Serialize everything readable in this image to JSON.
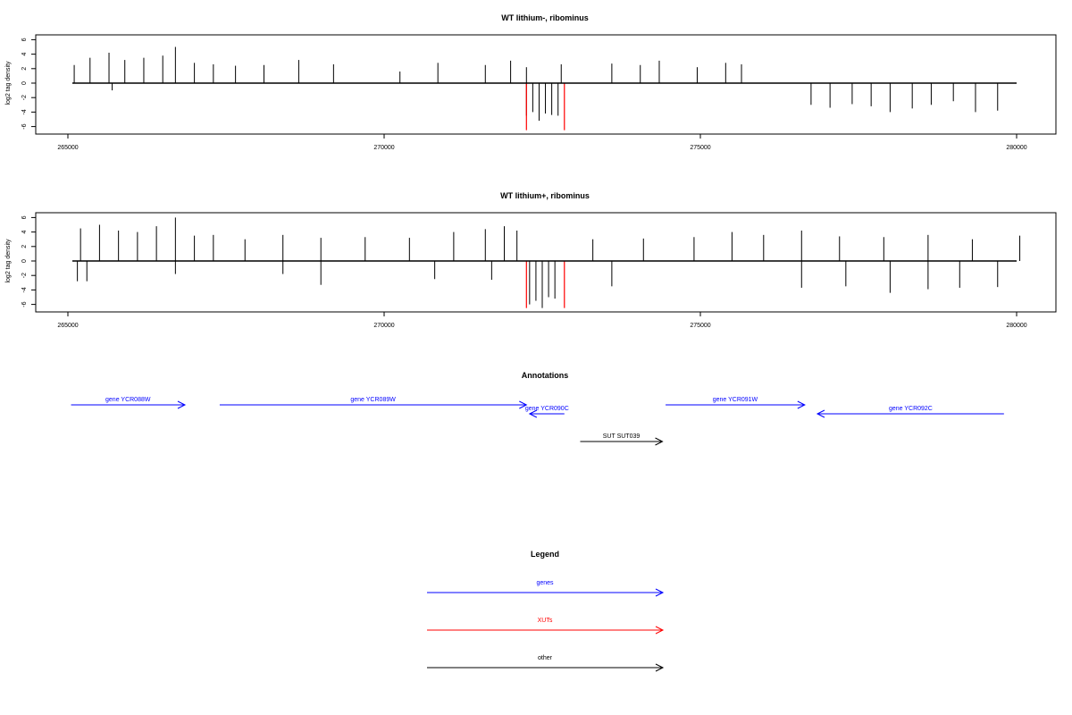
{
  "colors": {
    "gene": "#0000ff",
    "xut": "#ff0000",
    "other": "#000000",
    "axis": "#000000",
    "signal": "#000000"
  },
  "chart_data": [
    {
      "type": "bar",
      "title": "WT lithium-, ribominus",
      "ylabel": "log2 tag density",
      "xlim": [
        265000,
        280000
      ],
      "ylim": [
        -7,
        7
      ],
      "xticks": [
        "265000",
        "270000",
        "275000",
        "280000"
      ],
      "yticks": [
        "-6",
        "-4",
        "-2",
        "0",
        "2",
        "4",
        "6"
      ],
      "series": [
        {
          "strand": "plus",
          "x": [
            265100,
            265350,
            265650,
            265900,
            266200,
            266500,
            266700,
            267000,
            267300,
            267650,
            268100,
            268650,
            269200,
            270250,
            270850,
            271600,
            272000,
            272250,
            272800,
            273600,
            274050,
            274350,
            274950,
            275400,
            275650
          ],
          "values": [
            2.5,
            3.5,
            4.2,
            3.2,
            3.5,
            3.8,
            5.0,
            2.8,
            2.6,
            2.4,
            2.5,
            3.2,
            2.6,
            1.6,
            2.8,
            2.5,
            3.1,
            2.2,
            2.6,
            2.7,
            2.5,
            3.1,
            2.2,
            2.8,
            2.6
          ]
        },
        {
          "strand": "minus",
          "x": [
            265700,
            272250,
            272350,
            272450,
            272550,
            272650,
            272750,
            276750,
            277050,
            277400,
            277700,
            278000,
            278350,
            278650,
            279000,
            279350,
            279700
          ],
          "values": [
            -1.0,
            -4.5,
            -4.0,
            -5.2,
            -4.2,
            -4.4,
            -4.5,
            -3.0,
            -3.4,
            -2.9,
            -3.2,
            -4.0,
            -3.5,
            -3.0,
            -2.5,
            -4.0,
            -3.8
          ]
        },
        {
          "strand": "xut",
          "x": [
            272250,
            272850
          ],
          "values": [
            -6.5,
            -6.5
          ]
        }
      ]
    },
    {
      "type": "bar",
      "title": "WT lithium+, ribominus",
      "ylabel": "log2 tag density",
      "xlim": [
        265000,
        280000
      ],
      "ylim": [
        -7,
        7
      ],
      "xticks": [
        "265000",
        "270000",
        "275000",
        "280000"
      ],
      "yticks": [
        "-6",
        "-4",
        "-2",
        "0",
        "2",
        "4",
        "6"
      ],
      "series": [
        {
          "strand": "plus",
          "x": [
            265200,
            265500,
            265800,
            266100,
            266400,
            266700,
            267000,
            267300,
            267800,
            268400,
            269000,
            269700,
            270400,
            271100,
            271600,
            271900,
            272100,
            273300,
            274100,
            274900,
            275500,
            276000,
            276600,
            277200,
            277900,
            278600,
            279300,
            280050
          ],
          "values": [
            4.5,
            5.0,
            4.2,
            4.0,
            4.8,
            6.0,
            3.5,
            3.6,
            3.0,
            3.6,
            3.2,
            3.3,
            3.2,
            4.0,
            4.4,
            4.8,
            4.2,
            3.0,
            3.1,
            3.3,
            4.0,
            3.6,
            4.2,
            3.4,
            3.3,
            3.6,
            3.0,
            3.5
          ]
        },
        {
          "strand": "minus",
          "x": [
            265150,
            265300,
            266700,
            268400,
            269000,
            270800,
            271700,
            272300,
            272400,
            272500,
            272600,
            272700,
            273600,
            276600,
            277300,
            278000,
            278600,
            279100,
            279700
          ],
          "values": [
            -2.8,
            -2.8,
            -1.8,
            -1.8,
            -3.3,
            -2.5,
            -2.6,
            -6.0,
            -5.5,
            -6.5,
            -5.0,
            -5.2,
            -3.5,
            -3.7,
            -3.5,
            -4.4,
            -3.9,
            -3.7,
            -3.6
          ]
        },
        {
          "strand": "xut",
          "x": [
            272250,
            272850
          ],
          "values": [
            -6.5,
            -6.5
          ]
        }
      ]
    }
  ],
  "annotations": {
    "title": "Annotations",
    "features": [
      {
        "label": "gene YCR088W",
        "start": 265050,
        "end": 266850,
        "strand": "+",
        "kind": "gene",
        "row": 0
      },
      {
        "label": "gene YCR089W",
        "start": 267400,
        "end": 272250,
        "strand": "+",
        "kind": "gene",
        "row": 0
      },
      {
        "label": "gene YCR090C",
        "start": 272300,
        "end": 272850,
        "strand": "-",
        "kind": "gene",
        "row": 1
      },
      {
        "label": "gene YCR091W",
        "start": 274450,
        "end": 276650,
        "strand": "+",
        "kind": "gene",
        "row": 0
      },
      {
        "label": "gene YCR092C",
        "start": 276850,
        "end": 279800,
        "strand": "-",
        "kind": "gene",
        "row": 1
      },
      {
        "label": "SUT SUT039",
        "start": 273100,
        "end": 274400,
        "strand": "+",
        "kind": "other",
        "row": 2
      }
    ]
  },
  "legend": {
    "title": "Legend",
    "items": [
      {
        "label": "genes",
        "kind": "gene"
      },
      {
        "label": "XUTs",
        "kind": "xut"
      },
      {
        "label": "other",
        "kind": "other"
      }
    ]
  }
}
